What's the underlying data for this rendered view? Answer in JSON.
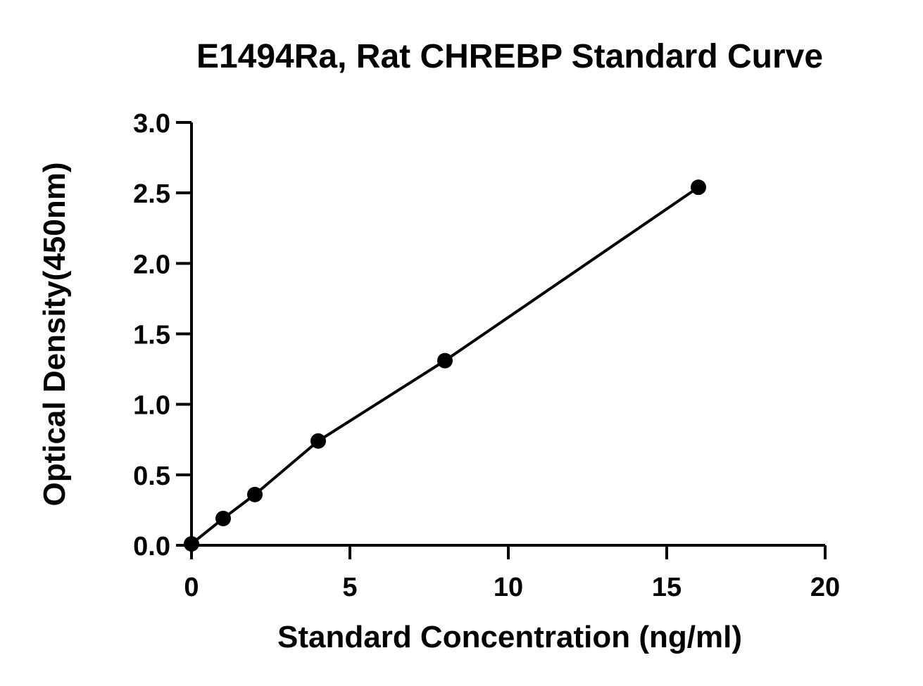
{
  "chart_data": {
    "type": "scatter",
    "title": "E1494Ra, Rat CHREBP Standard Curve",
    "xlabel": "Standard Concentration (ng/ml)",
    "ylabel": "Optical Density(450nm)",
    "xlim": [
      0,
      20
    ],
    "ylim": [
      0,
      3.0
    ],
    "x_ticks": [
      0,
      5,
      10,
      15,
      20
    ],
    "y_ticks": [
      0.0,
      0.5,
      1.0,
      1.5,
      2.0,
      2.5,
      3.0
    ],
    "x_tick_labels": [
      "0",
      "5",
      "10",
      "15",
      "20"
    ],
    "y_tick_labels": [
      "0.0",
      "0.5",
      "1.0",
      "1.5",
      "2.0",
      "2.5",
      "3.0"
    ],
    "grid": false,
    "series": [
      {
        "x": [
          0,
          1,
          2,
          4,
          8,
          16
        ],
        "y": [
          0.01,
          0.19,
          0.36,
          0.74,
          1.31,
          2.54
        ],
        "fit": "line",
        "color": "#000000"
      }
    ]
  }
}
